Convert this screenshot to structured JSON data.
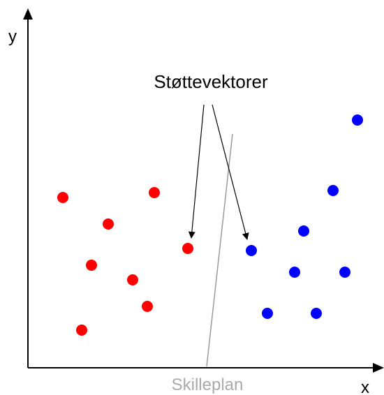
{
  "axes": {
    "y_label": "y",
    "x_label": "x"
  },
  "annotation": "Støttevektorer",
  "separator_label": "Skilleplan"
}
